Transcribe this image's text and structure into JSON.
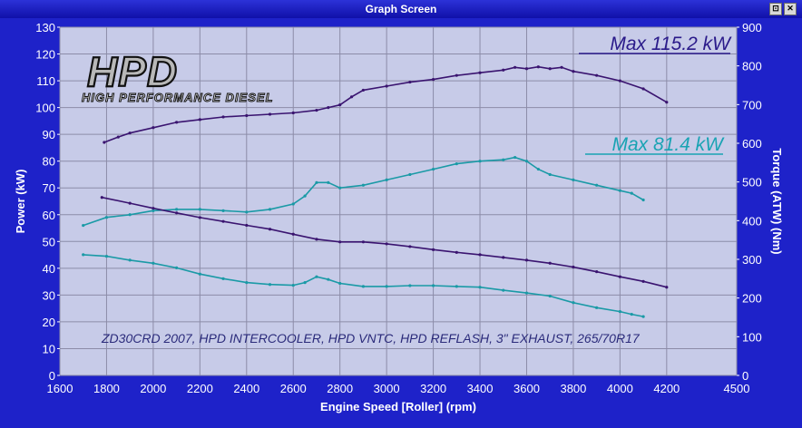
{
  "window": {
    "title": "Graph Screen",
    "buttons": [
      "⊡",
      "✕"
    ]
  },
  "logo": {
    "main": "HPD",
    "sub": "HIGH PERFORMANCE DIESEL"
  },
  "annotations": {
    "max_power_1": "Max 115.2 kW",
    "max_power_2": "Max 81.4 kW",
    "note": "ZD30CRD 2007, HPD INTERCOOLER, HPD VNTC, HPD REFLASH, 3\" EXHAUST, 265/70R17"
  },
  "colors": {
    "background": "#1e22c9",
    "plot_background": "#c7cbe8",
    "grid": "#8c8ca8",
    "series_dark": "#3a1470",
    "series_teal": "#1a9aa6",
    "max_dark": "#2a1a8a",
    "max_teal": "#19a3b3"
  },
  "chart_data": {
    "type": "line",
    "xlabel": "Engine Speed [Roller] (rpm)",
    "ylabel": "Power (kW)",
    "y2label": "Torque (ATW) (Nm)",
    "xlim": [
      1600,
      4500
    ],
    "ylim": [
      0,
      130
    ],
    "y2lim": [
      0,
      900
    ],
    "x_ticks": [
      1600,
      1800,
      2000,
      2200,
      2400,
      2600,
      2800,
      3000,
      3200,
      3400,
      3600,
      3800,
      4000,
      4200,
      4500
    ],
    "y_ticks": [
      0,
      10,
      20,
      30,
      40,
      50,
      60,
      70,
      80,
      90,
      100,
      110,
      120,
      130
    ],
    "y2_ticks": [
      0,
      100,
      200,
      300,
      400,
      500,
      600,
      700,
      800,
      900
    ],
    "grid": true,
    "series": [
      {
        "axis": "left",
        "color": "#3a1470",
        "x": [
          1790,
          1850,
          1900,
          2000,
          2100,
          2200,
          2300,
          2400,
          2500,
          2600,
          2700,
          2750,
          2800,
          2850,
          2900,
          3000,
          3100,
          3200,
          3300,
          3400,
          3500,
          3550,
          3600,
          3650,
          3700,
          3750,
          3800,
          3900,
          4000,
          4100,
          4200
        ],
        "values": [
          87,
          89,
          90.5,
          92.5,
          94.5,
          95.5,
          96.5,
          97,
          97.5,
          98,
          99,
          100,
          101,
          104,
          106.5,
          108,
          109.5,
          110.5,
          112,
          113,
          114,
          115,
          114.5,
          115.2,
          114.5,
          115,
          113.5,
          112,
          110,
          107,
          102
        ]
      },
      {
        "axis": "left",
        "color": "#1a9aa6",
        "x": [
          1700,
          1800,
          1900,
          2000,
          2100,
          2200,
          2300,
          2400,
          2500,
          2600,
          2650,
          2700,
          2750,
          2800,
          2900,
          3000,
          3100,
          3200,
          3300,
          3400,
          3500,
          3550,
          3600,
          3650,
          3700,
          3800,
          3900,
          4000,
          4050,
          4100
        ],
        "values": [
          56,
          59,
          60,
          61.5,
          62,
          62,
          61.5,
          61,
          62,
          64,
          67,
          72,
          72,
          70,
          71,
          73,
          75,
          77,
          79,
          80,
          80.5,
          81.4,
          80,
          77,
          75,
          73,
          71,
          69,
          68,
          65.5
        ]
      },
      {
        "axis": "right",
        "color": "#3a1470",
        "x": [
          1780,
          1900,
          2000,
          2100,
          2200,
          2300,
          2400,
          2500,
          2600,
          2700,
          2800,
          2900,
          3000,
          3100,
          3200,
          3300,
          3400,
          3500,
          3600,
          3700,
          3800,
          3900,
          4000,
          4100,
          4200
        ],
        "values": [
          460,
          445,
          432,
          420,
          408,
          398,
          388,
          378,
          365,
          352,
          345,
          345,
          340,
          333,
          325,
          318,
          312,
          305,
          298,
          290,
          280,
          268,
          255,
          243,
          228
        ]
      },
      {
        "axis": "right",
        "color": "#1a9aa6",
        "x": [
          1700,
          1800,
          1900,
          2000,
          2100,
          2200,
          2300,
          2400,
          2500,
          2600,
          2650,
          2700,
          2750,
          2800,
          2900,
          3000,
          3100,
          3200,
          3300,
          3400,
          3500,
          3600,
          3700,
          3800,
          3900,
          4000,
          4050,
          4100
        ],
        "values": [
          312,
          308,
          298,
          290,
          278,
          262,
          250,
          240,
          235,
          233,
          240,
          255,
          248,
          238,
          230,
          230,
          232,
          232,
          230,
          228,
          220,
          213,
          205,
          188,
          175,
          165,
          158,
          152
        ]
      }
    ]
  }
}
